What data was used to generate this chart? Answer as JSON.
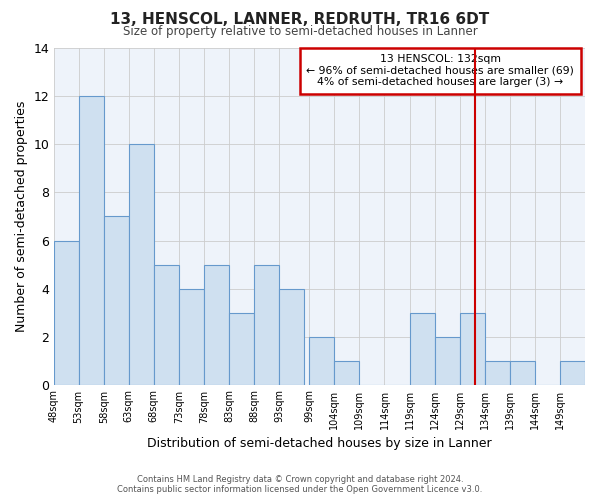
{
  "title": "13, HENSCOL, LANNER, REDRUTH, TR16 6DT",
  "subtitle": "Size of property relative to semi-detached houses in Lanner",
  "xlabel": "Distribution of semi-detached houses by size in Lanner",
  "ylabel": "Number of semi-detached properties",
  "bin_labels": [
    "48sqm",
    "53sqm",
    "58sqm",
    "63sqm",
    "68sqm",
    "73sqm",
    "78sqm",
    "83sqm",
    "88sqm",
    "93sqm",
    "99sqm",
    "104sqm",
    "109sqm",
    "114sqm",
    "119sqm",
    "124sqm",
    "129sqm",
    "134sqm",
    "139sqm",
    "144sqm",
    "149sqm"
  ],
  "bin_left_edges": [
    48,
    53,
    58,
    63,
    68,
    73,
    78,
    83,
    88,
    93,
    99,
    104,
    109,
    114,
    119,
    124,
    129,
    134,
    139,
    144,
    149
  ],
  "bin_width": 5,
  "counts": [
    6,
    12,
    7,
    10,
    5,
    4,
    5,
    3,
    5,
    4,
    2,
    1,
    0,
    0,
    3,
    2,
    3,
    1,
    1,
    0,
    1
  ],
  "bar_fill_color": "#cfe0f0",
  "bar_edge_color": "#6699cc",
  "grid_color": "#cccccc",
  "background_color": "#ffffff",
  "plot_bg_color": "#eef3fa",
  "vline_x": 132,
  "vline_color": "#cc0000",
  "ylim": [
    0,
    14
  ],
  "yticks": [
    0,
    2,
    4,
    6,
    8,
    10,
    12,
    14
  ],
  "annotation_title": "13 HENSCOL: 132sqm",
  "annotation_line1": "← 96% of semi-detached houses are smaller (69)",
  "annotation_line2": "4% of semi-detached houses are larger (3) →",
  "annotation_box_facecolor": "#ffffff",
  "annotation_box_edgecolor": "#cc0000",
  "footer_line1": "Contains HM Land Registry data © Crown copyright and database right 2024.",
  "footer_line2": "Contains public sector information licensed under the Open Government Licence v3.0."
}
